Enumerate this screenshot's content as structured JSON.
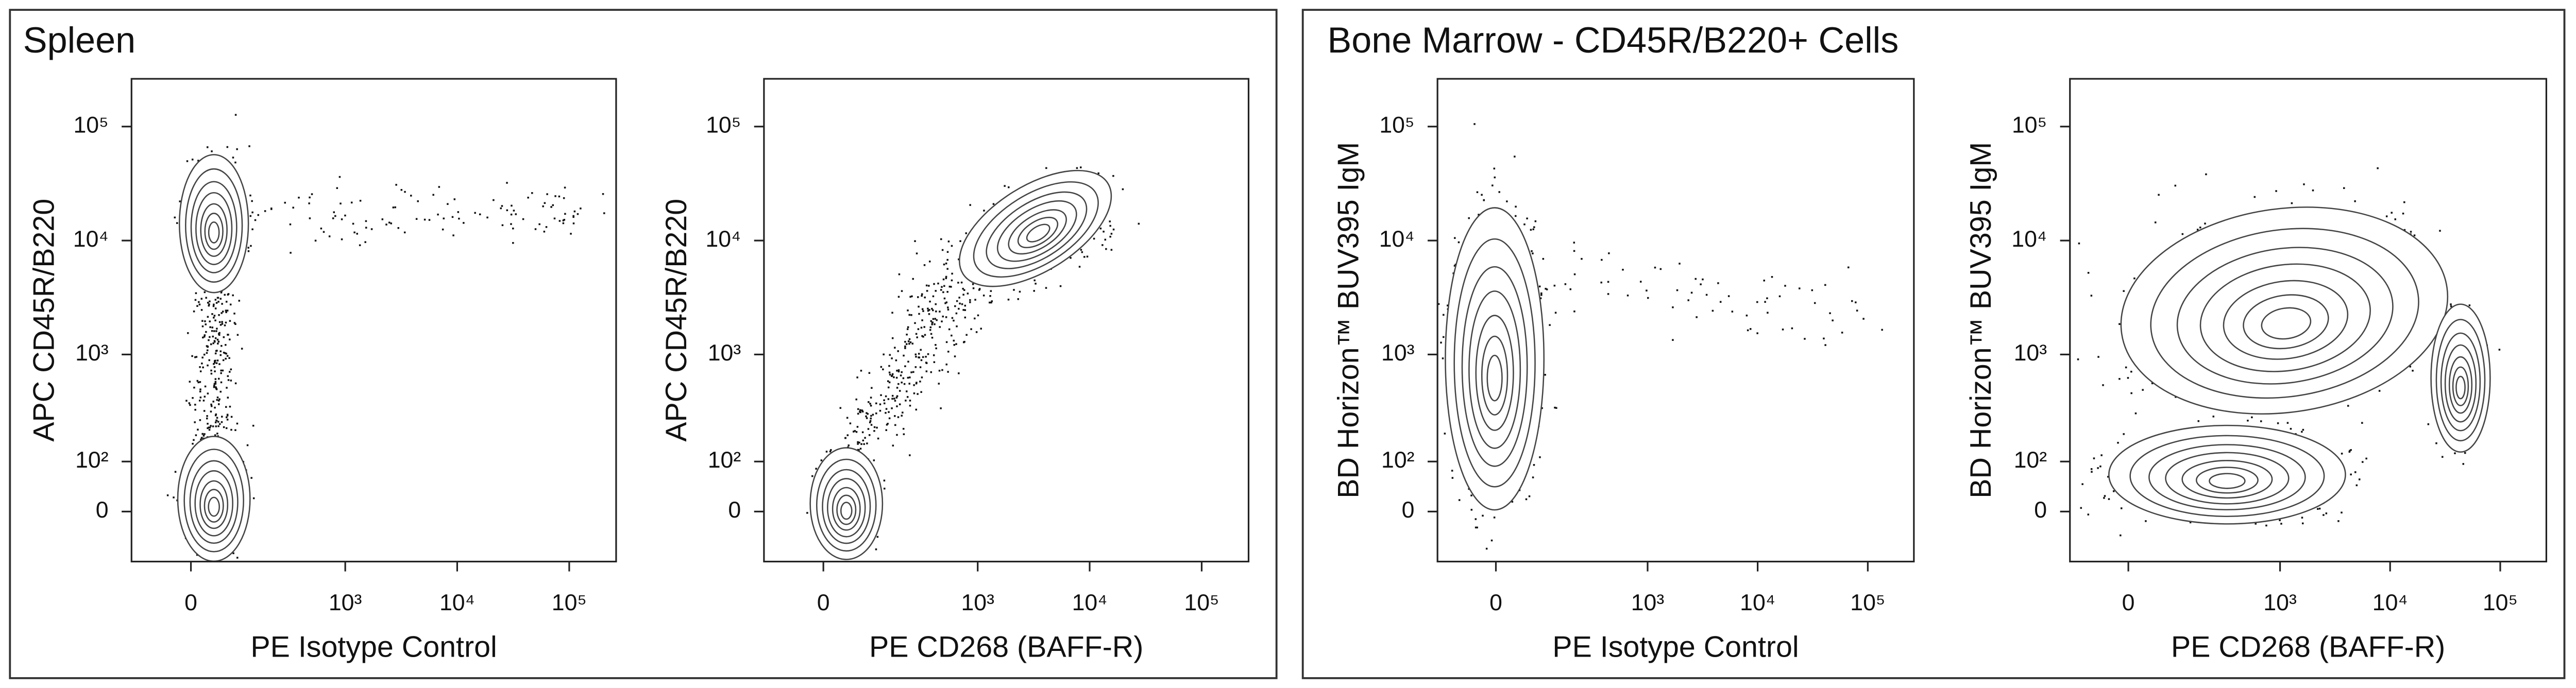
{
  "panels": [
    {
      "title": "Spleen"
    },
    {
      "title": "Bone Marrow - CD45R/B220+ Cells"
    }
  ],
  "chart_data": [
    {
      "type": "contour",
      "x_label": "PE Isotype Control",
      "y_label": "APC CD45R/B220",
      "xlim": [
        -130,
        262144
      ],
      "ylim": [
        -100,
        262144
      ],
      "xticks": [
        0,
        {
          "value": 1000,
          "label": "10³"
        },
        {
          "value": 10000,
          "label": "10⁴"
        },
        {
          "value": 100000,
          "label": "10⁵"
        }
      ],
      "yticks": [
        0,
        {
          "value": 100,
          "label": "10²"
        },
        {
          "value": 1000,
          "label": "10³"
        },
        {
          "value": 10000,
          "label": "10⁴"
        },
        {
          "value": 100000,
          "label": "10⁵"
        }
      ]
    },
    {
      "type": "contour",
      "x_label": "PE CD268 (BAFF-R)",
      "y_label": "APC CD45R/B220",
      "xlim": [
        -130,
        262144
      ],
      "ylim": [
        -100,
        262144
      ],
      "xticks": [
        0,
        {
          "value": 1000,
          "label": "10³"
        },
        {
          "value": 10000,
          "label": "10⁴"
        },
        {
          "value": 100000,
          "label": "10⁵"
        }
      ],
      "yticks": [
        0,
        {
          "value": 100,
          "label": "10²"
        },
        {
          "value": 1000,
          "label": "10³"
        },
        {
          "value": 10000,
          "label": "10⁴"
        },
        {
          "value": 100000,
          "label": "10⁵"
        }
      ]
    },
    {
      "type": "contour",
      "x_label": "PE Isotype Control",
      "y_label": "BD Horizon™ BUV395  IgM",
      "xlim": [
        -130,
        262144
      ],
      "ylim": [
        -100,
        262144
      ],
      "xticks": [
        0,
        {
          "value": 1000,
          "label": "10³"
        },
        {
          "value": 10000,
          "label": "10⁴"
        },
        {
          "value": 100000,
          "label": "10⁵"
        }
      ],
      "yticks": [
        0,
        {
          "value": 100,
          "label": "10²"
        },
        {
          "value": 1000,
          "label": "10³"
        },
        {
          "value": 10000,
          "label": "10⁴"
        },
        {
          "value": 100000,
          "label": "10⁵"
        }
      ]
    },
    {
      "type": "contour",
      "x_label": "PE CD268 (BAFF-R)",
      "y_label": "BD Horizon™ BUV395  IgM",
      "xlim": [
        -130,
        262144
      ],
      "ylim": [
        -100,
        262144
      ],
      "xticks": [
        0,
        {
          "value": 1000,
          "label": "10³"
        },
        {
          "value": 10000,
          "label": "10⁴"
        },
        {
          "value": 100000,
          "label": "10⁵"
        }
      ],
      "yticks": [
        0,
        {
          "value": 100,
          "label": "10²"
        },
        {
          "value": 1000,
          "label": "10³"
        },
        {
          "value": 10000,
          "label": "10⁴"
        },
        {
          "value": 100000,
          "label": "10⁵"
        }
      ]
    }
  ]
}
